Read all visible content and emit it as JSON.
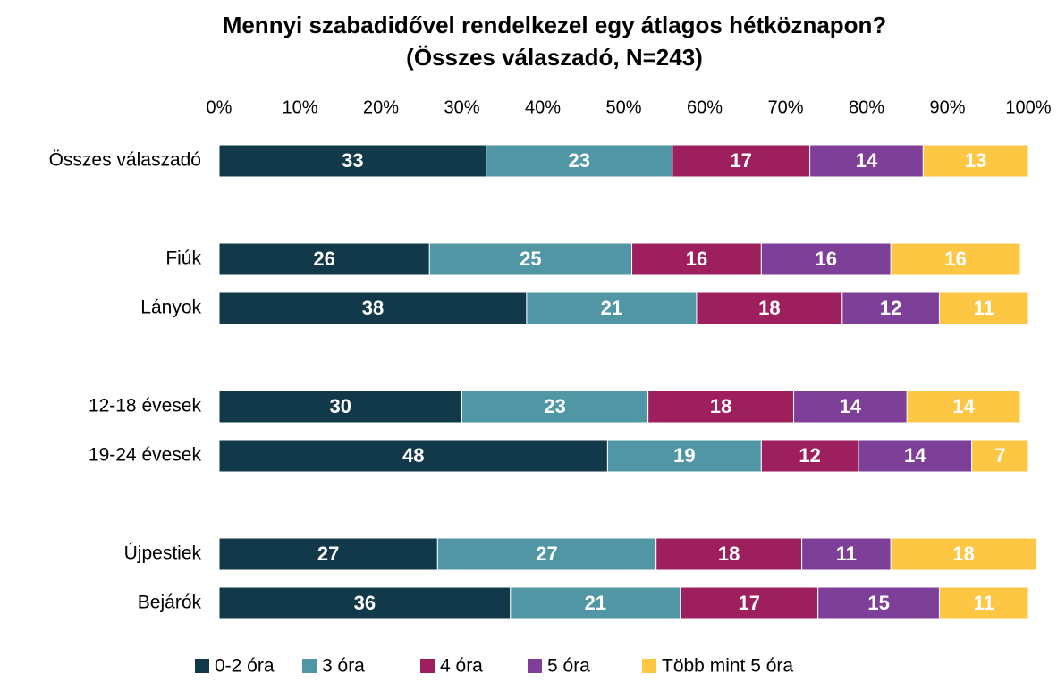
{
  "chart_data": {
    "type": "stacked-barh",
    "title": "Mennyi szabadidővel rendelkezel egy átlagos hétköznapon?",
    "subtitle": "(Összes válaszadó, N=243)",
    "categories": [
      "Összes válaszadó",
      "Fiúk",
      "Lányok",
      "12-18 évesek",
      "19-24 évesek",
      "Újpestiek",
      "Bejárók"
    ],
    "series": [
      {
        "name": "0-2 óra",
        "color": "#12394a",
        "values": [
          33,
          26,
          38,
          30,
          48,
          27,
          36
        ]
      },
      {
        "name": "3 óra",
        "color": "#5096a5",
        "values": [
          23,
          25,
          21,
          23,
          19,
          27,
          21
        ]
      },
      {
        "name": "4 óra",
        "color": "#9e1f5e",
        "values": [
          17,
          16,
          18,
          18,
          12,
          18,
          17
        ]
      },
      {
        "name": "5 óra",
        "color": "#7e3f98",
        "values": [
          14,
          16,
          12,
          14,
          14,
          11,
          15
        ]
      },
      {
        "name": "Több mint 5 óra",
        "color": "#fdc643",
        "values": [
          13,
          16,
          11,
          14,
          7,
          18,
          11
        ]
      }
    ],
    "xlim": [
      0,
      100
    ],
    "xticks": [
      {
        "value": 0,
        "label": "0%"
      },
      {
        "value": 10,
        "label": "10%"
      },
      {
        "value": 20,
        "label": "20%"
      },
      {
        "value": 30,
        "label": "30%"
      },
      {
        "value": 40,
        "label": "40%"
      },
      {
        "value": 50,
        "label": "50%"
      },
      {
        "value": 60,
        "label": "60%"
      },
      {
        "value": 70,
        "label": "70%"
      },
      {
        "value": 80,
        "label": "80%"
      },
      {
        "value": 90,
        "label": "90%"
      },
      {
        "value": 100,
        "label": "100%"
      }
    ],
    "legend": "bottom"
  }
}
